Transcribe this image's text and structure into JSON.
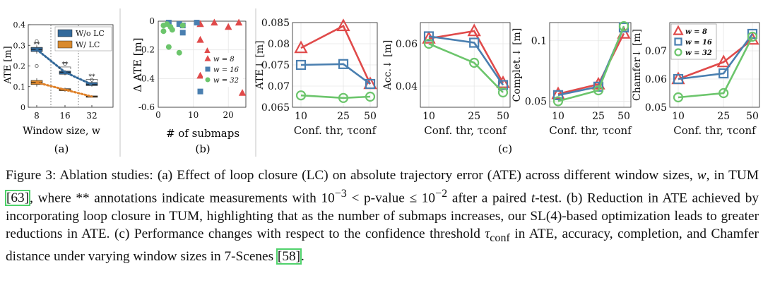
{
  "figure": {
    "panel_labels": {
      "a": "(a)",
      "b": "(b)",
      "c": "(c)"
    },
    "colors": {
      "red": "#e04a4a",
      "blue": "#4a7fb0",
      "green": "#6cc56c",
      "box_blue": "#33699a",
      "box_orange": "#d98a2e",
      "dot_blue": "#33699a",
      "dot_orange": "#e0822a"
    }
  },
  "caption": {
    "figure_number": "Figure 3:",
    "part1": " Ablation studies: (a) Effect of loop closure (LC) on absolute trajectory error (ATE) across different window sizes, ",
    "w_symbol": "w",
    "part2": ", in TUM ",
    "cite1": "[63]",
    "part3": ", where ** annotations indicate measurements with 10",
    "exp1": "−3",
    "part4": " < p-value ≤ 10",
    "exp2": "−2",
    "part5": " after a paired ",
    "t_symbol": "t",
    "part6": "-test. (b) Reduction in ATE achieved by incorporating loop closure in TUM, highlighting that as the number of submaps increases, our SL(4)-based optimization leads to greater reductions in ATE. (c) Performance changes with respect to the confidence threshold ",
    "tau": "τ",
    "tau_sub": "conf",
    "part7": " in ATE, accuracy, completion, and Chamfer distance under varying window sizes in 7-Scenes ",
    "cite2": "[58]",
    "part8": "."
  },
  "chart_data": [
    {
      "panel": "a",
      "type": "box",
      "xlabel": "Window size, w",
      "ylabel": "ATE [m]",
      "categories": [
        "8",
        "16",
        "32"
      ],
      "ylim": [
        0,
        0.4
      ],
      "yticks": [
        "0",
        "0.1",
        "0.2",
        "0.3",
        "0.4"
      ],
      "legend": {
        "position": "top-right",
        "entries": [
          "W/o LC",
          "W/ LC"
        ]
      },
      "series": [
        {
          "name": "W/o LC",
          "boxes": [
            {
              "q1": 0.27,
              "median": 0.28,
              "q3": 0.29,
              "min": 0.26,
              "max": 0.3
            },
            {
              "q1": 0.16,
              "median": 0.17,
              "q3": 0.175,
              "min": 0.155,
              "max": 0.18
            },
            {
              "q1": 0.105,
              "median": 0.11,
              "q3": 0.12,
              "min": 0.1,
              "max": 0.125
            }
          ],
          "outliers": [
            [
              0,
              0.32
            ],
            [
              0,
              0.2
            ],
            [
              1,
              0.21
            ],
            [
              2,
              0.133
            ]
          ]
        },
        {
          "name": "W/ LC",
          "boxes": [
            {
              "q1": 0.11,
              "median": 0.12,
              "q3": 0.13,
              "min": 0.1,
              "max": 0.14
            },
            {
              "q1": 0.08,
              "median": 0.085,
              "q3": 0.09,
              "min": 0.075,
              "max": 0.095
            },
            {
              "q1": 0.05,
              "median": 0.052,
              "q3": 0.055,
              "min": 0.048,
              "max": 0.058
            }
          ],
          "outliers": []
        }
      ],
      "annotations": [
        "**",
        "**",
        "**"
      ]
    },
    {
      "panel": "b",
      "type": "scatter",
      "xlabel": "# of submaps",
      "ylabel": "Δ ATE [m]",
      "xlim": [
        0,
        25
      ],
      "ylim": [
        -0.6,
        0
      ],
      "xticks": [
        "0",
        "10",
        "20"
      ],
      "yticks": [
        "0",
        "-0.2",
        "-0.4",
        "-0.6"
      ],
      "legend": {
        "position": "right",
        "entries": [
          "w = 8",
          "w = 16",
          "w = 32"
        ]
      },
      "series": [
        {
          "name": "w = 8",
          "marker": "triangle",
          "points": [
            [
              12,
              -0.02
            ],
            [
              16,
              -0.01
            ],
            [
              20,
              -0.04
            ],
            [
              23,
              -0.01
            ],
            [
              12,
              -0.13
            ],
            [
              14,
              -0.21
            ],
            [
              21,
              -0.33
            ],
            [
              12,
              -0.38
            ],
            [
              24,
              -0.5
            ]
          ]
        },
        {
          "name": "w = 16",
          "marker": "square",
          "points": [
            [
              3,
              -0.01
            ],
            [
              6,
              -0.02
            ],
            [
              7,
              -0.03
            ],
            [
              7,
              -0.08
            ],
            [
              12,
              -0.49
            ],
            [
              11,
              -0.01
            ]
          ]
        },
        {
          "name": "w = 32",
          "marker": "circle",
          "points": [
            [
              1.5,
              -0.03
            ],
            [
              2.5,
              -0.02
            ],
            [
              3.5,
              -0.04
            ],
            [
              4,
              -0.06
            ],
            [
              1.5,
              -0.07
            ],
            [
              3,
              -0.18
            ],
            [
              6,
              -0.22
            ],
            [
              7,
              -0.03
            ]
          ]
        }
      ]
    },
    {
      "panel": "c1",
      "type": "line",
      "xlabel": "Conf. thr, τconf",
      "ylabel": "ATE↓ [m]",
      "x": [
        "10",
        "25",
        "50"
      ],
      "ylim": [
        0.065,
        0.085
      ],
      "yticks": [
        "0.065",
        "0.07",
        "0.075",
        "0.08",
        "0.085"
      ],
      "series": [
        {
          "name": "w = 8",
          "marker": "triangle",
          "values": [
            0.079,
            0.0842,
            0.0705
          ]
        },
        {
          "name": "w = 16",
          "marker": "square",
          "values": [
            0.075,
            0.0752,
            0.0705
          ]
        },
        {
          "name": "w = 32",
          "marker": "circle",
          "values": [
            0.0678,
            0.0672,
            0.0675
          ]
        }
      ]
    },
    {
      "panel": "c2",
      "type": "line",
      "xlabel": "Conf. thr, τconf",
      "ylabel": "Acc.↓ [m]",
      "x": [
        "10",
        "25",
        "50"
      ],
      "ylim": [
        0.03,
        0.07
      ],
      "yticks": [
        "0.04",
        "0.06"
      ],
      "series": [
        {
          "name": "w = 8",
          "marker": "triangle",
          "values": [
            0.0625,
            0.066,
            0.0415
          ]
        },
        {
          "name": "w = 16",
          "marker": "square",
          "values": [
            0.0635,
            0.0605,
            0.0405
          ]
        },
        {
          "name": "w = 32",
          "marker": "circle",
          "values": [
            0.06,
            0.051,
            0.037
          ]
        }
      ]
    },
    {
      "panel": "c3",
      "type": "line",
      "xlabel": "Conf. thr, τconf",
      "ylabel": "Complet.↓ [m]",
      "x": [
        "10",
        "25",
        "50"
      ],
      "ylim": [
        0.045,
        0.115
      ],
      "yticks": [
        "0.05",
        "0.1"
      ],
      "series": [
        {
          "name": "w = 8",
          "marker": "triangle",
          "values": [
            0.056,
            0.064,
            0.106
          ]
        },
        {
          "name": "w = 16",
          "marker": "square",
          "values": [
            0.055,
            0.062,
            0.111
          ]
        },
        {
          "name": "w = 32",
          "marker": "circle",
          "values": [
            0.05,
            0.059,
            0.112
          ]
        }
      ]
    },
    {
      "panel": "c4",
      "type": "line",
      "xlabel": "Conf. thr, τconf",
      "ylabel": "Chamfer↓ [m]",
      "x": [
        "10",
        "25",
        "50"
      ],
      "ylim": [
        0.05,
        0.08
      ],
      "yticks": [
        "0.05",
        "0.06",
        "0.07"
      ],
      "legend": {
        "position": "top-left",
        "entries": [
          "w = 8",
          "w = 16",
          "w = 32"
        ]
      },
      "series": [
        {
          "name": "w = 8",
          "marker": "triangle",
          "values": [
            0.06,
            0.066,
            0.074
          ]
        },
        {
          "name": "w = 16",
          "marker": "square",
          "values": [
            0.06,
            0.062,
            0.076
          ]
        },
        {
          "name": "w = 32",
          "marker": "circle",
          "values": [
            0.0535,
            0.055,
            0.075
          ]
        }
      ]
    }
  ]
}
